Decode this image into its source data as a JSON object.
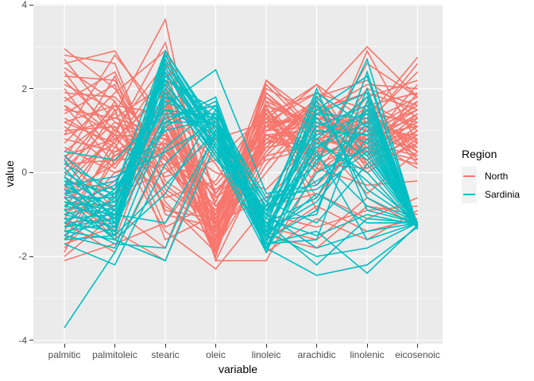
{
  "figure": {
    "background": "#FFFFFF"
  },
  "chart_data": {
    "type": "line",
    "variant": "parallel_coordinates",
    "title": "",
    "xlabel": "variable",
    "ylabel": "value",
    "categories": [
      "palmitic",
      "palmitoleic",
      "stearic",
      "oleic",
      "linoleic",
      "arachidic",
      "linolenic",
      "eicosenoic"
    ],
    "y_axis": {
      "ticks": [
        4,
        2,
        0,
        -2,
        -4
      ],
      "tick_labels": [
        "4",
        "2",
        "0",
        "-2",
        "-4"
      ],
      "minor_ticks": [
        3,
        1,
        -1,
        -3
      ],
      "range": [
        -4.08,
        4.02
      ]
    },
    "style": {
      "panel_bg": "#EBEBEB",
      "grid_major_color": "#FFFFFF",
      "grid_minor_color": "#FFFFFF",
      "axis_text_color": "#4D4D4D",
      "tick_color": "#333333",
      "legend_key_bg": "#F2F2F2"
    },
    "legend": {
      "title": "Region",
      "position": "right",
      "entries": [
        {
          "label": "North",
          "color": "#F8766D"
        },
        {
          "label": "Sardinia",
          "color": "#00BFC4"
        }
      ]
    },
    "series": [
      {
        "name": "North",
        "color": "#F8766D",
        "lines": [
          [
            2.95,
            2.0,
            0.3,
            -1.4,
            1.9,
            0.9,
            1.3,
            2.75
          ],
          [
            2.8,
            2.6,
            -0.4,
            -1.2,
            2.0,
            1.4,
            2.1,
            2.0
          ],
          [
            2.7,
            1.2,
            0.8,
            -1.7,
            1.5,
            0.4,
            0.9,
            1.6
          ],
          [
            2.6,
            2.9,
            1.0,
            -1.9,
            1.2,
            1.9,
            1.5,
            1.1
          ],
          [
            2.5,
            1.7,
            -0.9,
            -1.1,
            1.7,
            0.1,
            2.9,
            0.7
          ],
          [
            2.4,
            0.8,
            1.9,
            -1.6,
            1.0,
            1.1,
            0.4,
            1.9
          ],
          [
            2.3,
            2.2,
            0.1,
            -0.9,
            1.4,
            -0.6,
            1.1,
            0.5
          ],
          [
            2.2,
            1.0,
            2.6,
            -1.8,
            0.7,
            1.6,
            0.7,
            1.4
          ],
          [
            2.1,
            1.5,
            -1.3,
            -0.7,
            1.8,
            0.7,
            1.8,
            2.2
          ],
          [
            2.0,
            0.4,
            1.2,
            -1.5,
            1.1,
            2.1,
            0.2,
            0.9
          ],
          [
            1.9,
            1.8,
            0.6,
            -2.0,
            1.6,
            1.2,
            1.0,
            1.7
          ],
          [
            1.8,
            0.9,
            3.1,
            -1.3,
            0.9,
            0.5,
            0.6,
            0.3
          ],
          [
            1.7,
            2.4,
            -0.2,
            -1.0,
            2.2,
            1.0,
            1.4,
            1.2
          ],
          [
            1.6,
            0.2,
            1.5,
            -1.7,
            0.5,
            1.7,
            3.0,
            1.8
          ],
          [
            1.5,
            1.3,
            0.9,
            -0.5,
            1.3,
            -0.3,
            0.8,
            0.6
          ],
          [
            1.4,
            2.1,
            -0.7,
            -1.9,
            1.0,
            1.5,
            1.9,
            1.5
          ],
          [
            1.3,
            0.6,
            2.2,
            -1.2,
            1.5,
            0.2,
            0.1,
            1.0
          ],
          [
            1.2,
            1.6,
            0.4,
            -0.8,
            0.8,
            1.3,
            1.2,
            2.4
          ],
          [
            1.1,
            0.1,
            1.8,
            -1.6,
            1.9,
            0.8,
            0.5,
            0.2
          ],
          [
            1.0,
            1.1,
            -0.5,
            -1.4,
            0.6,
            1.8,
            2.2,
            1.3
          ],
          [
            0.9,
            2.8,
            1.3,
            -1.1,
            1.2,
            0.0,
            0.9,
            0.8
          ],
          [
            0.8,
            0.5,
            0.7,
            -1.8,
            1.7,
            1.1,
            1.6,
            1.9
          ],
          [
            0.7,
            1.9,
            2.9,
            -0.6,
            0.3,
            0.6,
            0.3,
            1.1
          ],
          [
            0.6,
            0.0,
            0.2,
            -1.5,
            1.4,
            1.9,
            1.1,
            0.4
          ],
          [
            0.5,
            1.4,
            3.65,
            -1.9,
            0.9,
            0.3,
            2.0,
            1.6
          ],
          [
            0.4,
            0.8,
            1.1,
            -0.3,
            1.1,
            1.4,
            0.7,
            2.1
          ],
          [
            0.3,
            2.3,
            -1.0,
            -1.3,
            2.1,
            0.9,
            1.3,
            0.7
          ],
          [
            0.2,
            0.3,
            1.6,
            -2.1,
            0.4,
            1.6,
            0.4,
            1.4
          ],
          [
            0.1,
            1.2,
            0.5,
            -0.9,
            1.6,
            -0.9,
            1.7,
            1.0
          ],
          [
            0.0,
            0.7,
            2.4,
            -1.6,
            0.7,
            1.2,
            0.8,
            0.1
          ],
          [
            -0.1,
            1.7,
            -0.3,
            -1.2,
            1.3,
            0.5,
            2.6,
            1.8
          ],
          [
            -0.2,
            -0.4,
            1.4,
            -0.7,
            1.8,
            1.0,
            0.2,
            0.9
          ],
          [
            -0.3,
            0.9,
            0.8,
            -1.8,
            0.2,
            1.5,
            1.0,
            1.5
          ],
          [
            -0.4,
            1.5,
            -1.6,
            -1.0,
            1.5,
            0.0,
            1.5,
            0.5
          ],
          [
            -0.5,
            0.2,
            2.0,
            -1.4,
            1.0,
            1.7,
            0.6,
            1.2
          ],
          [
            -0.6,
            1.0,
            0.3,
            -0.4,
            0.6,
            0.8,
            1.1,
            2.6
          ],
          [
            -0.7,
            -0.8,
            1.7,
            -1.1,
            1.2,
            1.3,
            0.0,
            0.8
          ],
          [
            -0.8,
            0.4,
            0.9,
            -1.7,
            0.8,
            0.4,
            1.8,
            0.3
          ],
          [
            -0.9,
            1.1,
            -0.6,
            -0.2,
            1.6,
            1.1,
            0.9,
            1.1
          ],
          [
            -1.0,
            -0.2,
            1.3,
            -1.3,
            0.5,
            1.8,
            0.5,
            1.7
          ],
          [
            -1.1,
            0.6,
            0.1,
            -0.9,
            1.1,
            0.6,
            1.4,
            0.6
          ],
          [
            -1.2,
            -1.1,
            2.7,
            -0.5,
            0.9,
            1.0,
            0.3,
            1.3
          ],
          [
            -1.3,
            0.0,
            0.6,
            -1.5,
            0.0,
            1.5,
            1.0,
            0.9
          ],
          [
            -1.4,
            0.8,
            -0.1,
            0.3,
            1.4,
            0.2,
            0.7,
            0.4
          ],
          [
            -1.5,
            -0.6,
            1.0,
            -1.0,
            0.7,
            0.9,
            1.2,
            1.8
          ],
          [
            -1.6,
            0.3,
            0.4,
            -1.9,
            1.0,
            1.6,
            0.1,
            0.7
          ],
          [
            -1.7,
            -1.3,
            1.9,
            -0.8,
            0.4,
            0.7,
            0.8,
            1.5
          ],
          [
            -1.8,
            -0.5,
            0.0,
            0.8,
            1.2,
            1.2,
            0.4,
            1.0
          ],
          [
            -1.9,
            0.5,
            1.2,
            -1.2,
            -0.6,
            0.5,
            1.6,
            0.2
          ],
          [
            -2.0,
            -1.0,
            0.7,
            -0.6,
            0.8,
            1.4,
            0.6,
            1.2
          ],
          [
            -2.1,
            -1.7,
            -1.2,
            0.5,
            -1.0,
            -1.3,
            -0.9,
            -0.8
          ],
          [
            -1.2,
            -1.9,
            0.5,
            1.1,
            -1.6,
            -0.8,
            -1.4,
            -1.1
          ],
          [
            -0.6,
            -1.4,
            -2.1,
            0.9,
            -1.3,
            -1.6,
            -0.6,
            -1.3
          ],
          [
            0.4,
            -0.9,
            -1.8,
            1.3,
            -1.9,
            -1.1,
            -1.6,
            -0.9
          ],
          [
            1.2,
            0.7,
            -1.4,
            -2.3,
            -0.8,
            -0.5,
            -1.1,
            -0.6
          ],
          [
            0.9,
            1.3,
            2.1,
            -2.1,
            -2.1,
            0.1,
            -0.3,
            -0.2
          ],
          [
            -0.3,
            -1.6,
            1.6,
            0.2,
            -1.5,
            -1.8,
            -0.8,
            -1.0
          ],
          [
            1.6,
            0.9,
            -0.8,
            -1.6,
            2.2,
            1.3,
            0.9,
            1.3
          ],
          [
            0.2,
            1.6,
            1.4,
            -1.0,
            1.3,
            2.1,
            1.2,
            0.8
          ],
          [
            -0.9,
            -0.7,
            0.8,
            0.0,
            -0.4,
            0.8,
            -0.5,
            0.5
          ]
        ]
      },
      {
        "name": "Sardinia",
        "color": "#00BFC4",
        "lines": [
          [
            -3.7,
            -1.9,
            0.6,
            1.6,
            -0.9,
            -0.2,
            0.6,
            -1.25
          ],
          [
            -1.7,
            -2.2,
            0.2,
            1.4,
            -1.8,
            -2.45,
            -2.2,
            -1.3
          ],
          [
            -1.6,
            -1.5,
            2.9,
            1.0,
            -1.3,
            0.6,
            1.2,
            -1.2
          ],
          [
            -1.6,
            -0.9,
            2.6,
            0.8,
            -1.6,
            1.4,
            1.9,
            -1.3
          ],
          [
            -1.5,
            -1.8,
            1.2,
            1.2,
            -1.1,
            -1.5,
            -1.0,
            -1.25
          ],
          [
            -1.5,
            -0.6,
            2.4,
            0.6,
            -1.7,
            1.8,
            0.4,
            -1.2
          ],
          [
            -1.4,
            -1.2,
            2.8,
            0.9,
            -0.8,
            0.2,
            2.7,
            -1.3
          ],
          [
            -1.4,
            -1.6,
            -0.5,
            1.5,
            -1.4,
            -2.0,
            -1.8,
            -1.2
          ],
          [
            -1.3,
            -0.8,
            2.2,
            0.4,
            -1.9,
            1.0,
            0.9,
            -1.25
          ],
          [
            -1.3,
            -1.1,
            1.8,
            1.1,
            -1.2,
            -0.6,
            1.5,
            -1.35
          ],
          [
            -1.2,
            -1.4,
            2.5,
            0.7,
            -1.5,
            1.6,
            -0.4,
            -1.2
          ],
          [
            -1.2,
            -0.4,
            1.5,
            1.3,
            -0.7,
            -1.2,
            0.2,
            -1.3
          ],
          [
            -1.1,
            -1.0,
            2.0,
            0.5,
            -1.8,
            0.8,
            1.8,
            -1.25
          ],
          [
            -1.1,
            -1.7,
            -1.8,
            1.0,
            -1.0,
            -1.8,
            -1.4,
            -1.2
          ],
          [
            -1.0,
            -0.7,
            2.7,
            0.8,
            -1.4,
            1.2,
            0.7,
            -1.3
          ],
          [
            -1.0,
            -1.3,
            1.1,
            1.7,
            -1.6,
            -0.9,
            2.0,
            -1.25
          ],
          [
            -0.9,
            -0.5,
            1.9,
            0.3,
            -0.9,
            0.4,
            -0.8,
            -1.2
          ],
          [
            -0.9,
            -1.5,
            2.3,
            1.2,
            -1.3,
            1.9,
            1.1,
            -1.35
          ],
          [
            -0.8,
            -1.0,
            -1.2,
            0.9,
            -1.7,
            -1.4,
            -2.4,
            -1.25
          ],
          [
            -0.8,
            -0.3,
            2.1,
            0.6,
            -1.1,
            0.9,
            1.4,
            -1.2
          ],
          [
            -0.7,
            -1.2,
            1.4,
            1.4,
            -0.6,
            -0.4,
            0.5,
            -1.3
          ],
          [
            -0.7,
            -0.9,
            2.9,
            1.0,
            -1.5,
            1.5,
            2.3,
            -1.25
          ],
          [
            -0.6,
            -1.6,
            -2.1,
            0.7,
            -1.2,
            -2.2,
            -1.1,
            -1.2
          ],
          [
            -0.6,
            -0.6,
            1.7,
            1.1,
            -1.8,
            0.7,
            0.0,
            -1.3
          ],
          [
            -0.5,
            -1.1,
            2.4,
            0.5,
            -1.0,
            1.1,
            1.6,
            -1.25
          ],
          [
            -0.5,
            -0.2,
            1.0,
            1.3,
            -1.4,
            -0.7,
            0.8,
            -1.35
          ],
          [
            -0.4,
            -1.4,
            2.6,
            0.9,
            -0.8,
            1.7,
            -0.6,
            -1.2
          ],
          [
            -0.4,
            -0.8,
            1.3,
            1.6,
            -1.6,
            0.3,
            1.0,
            -1.25
          ],
          [
            -0.3,
            -1.0,
            2.0,
            0.4,
            -1.2,
            -1.0,
            2.4,
            -1.3
          ],
          [
            -0.3,
            -0.1,
            0.5,
            1.2,
            -1.9,
            0.5,
            -1.6,
            -1.2
          ],
          [
            -0.2,
            -1.3,
            2.8,
            0.8,
            -1.1,
            1.3,
            0.3,
            -1.25
          ],
          [
            -0.2,
            -0.5,
            1.6,
            2.45,
            -0.5,
            -0.3,
            1.2,
            -1.3
          ],
          [
            -0.1,
            -0.9,
            2.2,
            1.5,
            -1.3,
            0.8,
            -0.2,
            -1.2
          ],
          [
            -0.1,
            -1.5,
            -0.3,
            1.0,
            -1.7,
            -1.6,
            1.7,
            -1.25
          ],
          [
            0.0,
            -0.7,
            2.5,
            0.6,
            -0.9,
            1.0,
            0.9,
            -1.35
          ],
          [
            0.1,
            -1.1,
            1.2,
            1.8,
            -1.5,
            -0.5,
            -1.2,
            -1.2
          ],
          [
            0.2,
            -0.4,
            2.9,
            1.1,
            -0.7,
            1.4,
            1.3,
            -1.25
          ],
          [
            0.3,
            -1.2,
            1.9,
            0.7,
            -1.8,
            0.0,
            0.6,
            -1.3
          ],
          [
            0.4,
            -0.6,
            2.3,
            1.3,
            -1.0,
            2.0,
            -0.9,
            -1.2
          ],
          [
            0.5,
            0.3,
            1.5,
            0.9,
            -1.4,
            0.6,
            1.5,
            -1.25
          ]
        ]
      }
    ]
  }
}
